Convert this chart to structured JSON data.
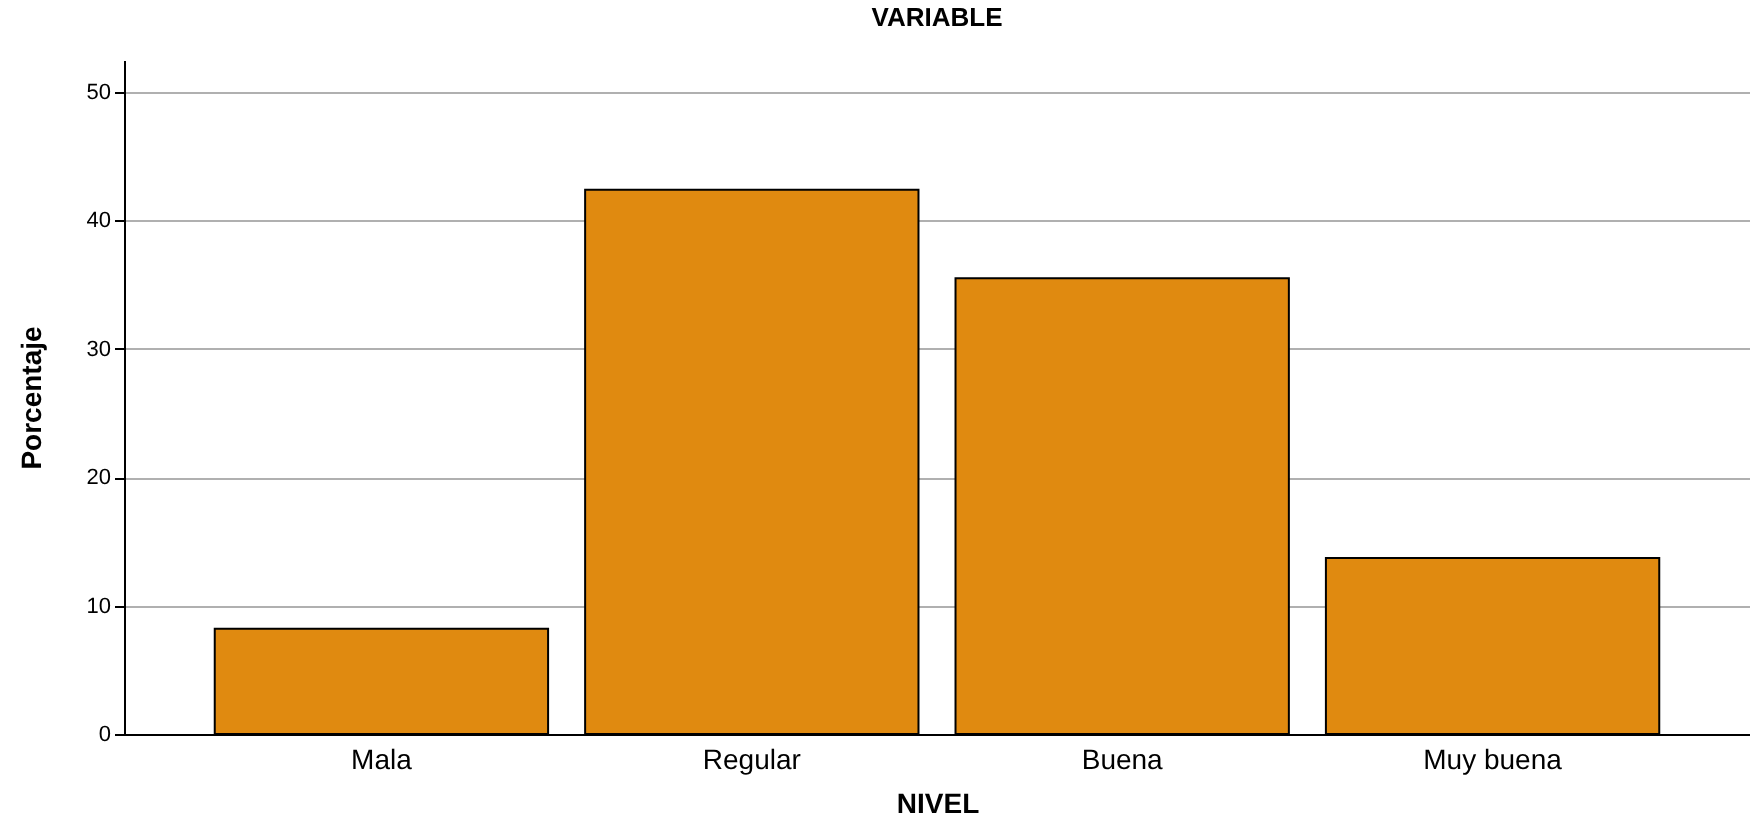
{
  "chart_data": {
    "type": "bar",
    "title": "VARIABLE",
    "xlabel": "NIVEL",
    "ylabel": "Porcentaje",
    "categories": [
      "Mala",
      "Regular",
      "Buena",
      "Muy buena"
    ],
    "values": [
      8.2,
      42.4,
      35.5,
      13.7
    ],
    "color": "#e08a10",
    "ylim": [
      0,
      52.5
    ],
    "yticks": [
      0,
      10,
      20,
      30,
      40,
      50
    ],
    "grid": "y"
  }
}
